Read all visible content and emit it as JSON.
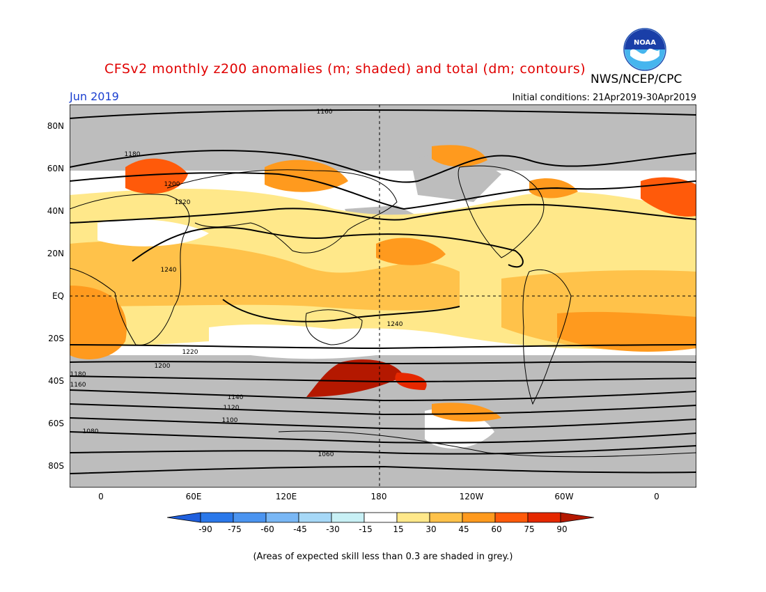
{
  "header": {
    "title": "CFSv2 monthly z200 anomalies (m; shaded) and total (dm; contours)",
    "org": "NWS/NCEP/CPC",
    "month": "Jun 2019",
    "initial_conditions": "Initial conditions: 21Apr2019-30Apr2019",
    "logo_text": "NOAA"
  },
  "map": {
    "lat_labels": [
      "80N",
      "60N",
      "40N",
      "20N",
      "EQ",
      "20S",
      "40S",
      "60S",
      "80S"
    ],
    "lon_labels": [
      "0",
      "60E",
      "120E",
      "180",
      "120W",
      "60W",
      "0"
    ],
    "contour_labels": [
      "1160",
      "1180",
      "1200",
      "1220",
      "1240",
      "1240",
      "1220",
      "1200",
      "1180",
      "1160",
      "1140",
      "1120",
      "1100",
      "1080",
      "1060"
    ],
    "colors": {
      "grey_low_skill": "#bdbdbd",
      "ocean_neutral": "#ffffff"
    }
  },
  "colorbar": {
    "ticks": [
      "-90",
      "-75",
      "-60",
      "-45",
      "-30",
      "-15",
      "15",
      "30",
      "45",
      "60",
      "75",
      "90"
    ],
    "colors": [
      "#1f5fdd",
      "#2a78ea",
      "#4b94f0",
      "#79b7f5",
      "#a6d8f7",
      "#c8f0f5",
      "#ffffff",
      "#ffe88a",
      "#ffc24a",
      "#ff9a1e",
      "#ff5a0a",
      "#e52800",
      "#b41800"
    ]
  },
  "footer": {
    "note": "(Areas of expected skill less than 0.3 are shaded in grey.)"
  }
}
